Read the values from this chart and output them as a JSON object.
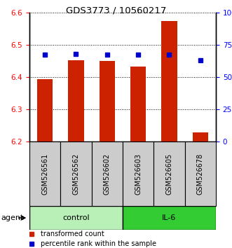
{
  "title": "GDS3773 / 10560217",
  "samples": [
    "GSM526561",
    "GSM526562",
    "GSM526602",
    "GSM526603",
    "GSM526605",
    "GSM526678"
  ],
  "red_values": [
    6.393,
    6.452,
    6.449,
    6.432,
    6.573,
    6.228
  ],
  "blue_percentiles": [
    67.5,
    68.0,
    67.5,
    67.5,
    67.5,
    63.0
  ],
  "ylim_left": [
    6.2,
    6.6
  ],
  "ylim_right": [
    0,
    100
  ],
  "yticks_left": [
    6.2,
    6.3,
    6.4,
    6.5,
    6.6
  ],
  "yticks_right": [
    0,
    25,
    50,
    75,
    100
  ],
  "ytick_labels_right": [
    "0",
    "25",
    "50",
    "75",
    "100%"
  ],
  "groups": [
    {
      "label": "control",
      "indices": [
        0,
        1,
        2
      ],
      "color": "#b8f0b8"
    },
    {
      "label": "IL-6",
      "indices": [
        3,
        4,
        5
      ],
      "color": "#33cc33"
    }
  ],
  "bar_color": "#cc2200",
  "bar_bottom": 6.2,
  "blue_color": "#0000cc",
  "sample_box_color": "#cccccc",
  "agent_label": "agent",
  "legend_items": [
    {
      "label": "transformed count",
      "color": "#cc2200"
    },
    {
      "label": "percentile rank within the sample",
      "color": "#0000cc"
    }
  ]
}
